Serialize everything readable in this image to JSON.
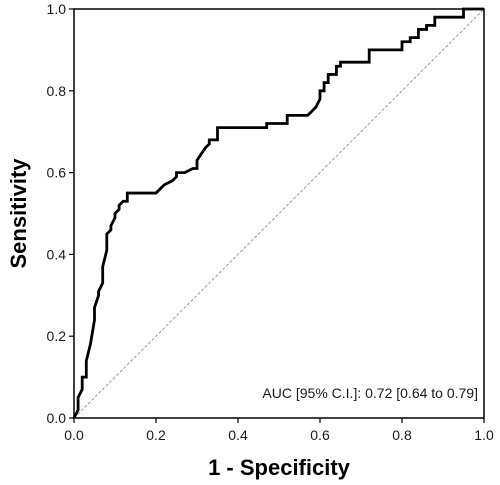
{
  "chart_data": {
    "type": "line",
    "xlabel": "1 - Specificity",
    "ylabel": "Sensitivity",
    "xlim": [
      0,
      1
    ],
    "ylim": [
      0,
      1
    ],
    "x_ticks": [
      "0.0",
      "0.2",
      "0.4",
      "0.6",
      "0.8",
      "1.0"
    ],
    "y_ticks": [
      "0.0",
      "0.2",
      "0.4",
      "0.6",
      "0.8",
      "1.0"
    ],
    "grid": false,
    "annotation": "AUC [95% C.I.]: 0.72 [0.64 to 0.79]",
    "reference_line": {
      "x": [
        0,
        1
      ],
      "y": [
        0,
        1
      ],
      "style": "dashed",
      "color": "#999999"
    },
    "series": [
      {
        "color": "#000000",
        "x": [
          0,
          0.01,
          0.01,
          0.02,
          0.02,
          0.03,
          0.03,
          0.04,
          0.04,
          0.05,
          0.05,
          0.06,
          0.06,
          0.07,
          0.07,
          0.08,
          0.08,
          0.09,
          0.09,
          0.1,
          0.1,
          0.11,
          0.11,
          0.12,
          0.12,
          0.13,
          0.13,
          0.15,
          0.15,
          0.2,
          0.2,
          0.22,
          0.24,
          0.25,
          0.25,
          0.27,
          0.29,
          0.3,
          0.3,
          0.32,
          0.33,
          0.33,
          0.35,
          0.35,
          0.42,
          0.47,
          0.47,
          0.52,
          0.52,
          0.57,
          0.59,
          0.6,
          0.6,
          0.61,
          0.61,
          0.62,
          0.62,
          0.64,
          0.64,
          0.65,
          0.65,
          0.72,
          0.72,
          0.8,
          0.8,
          0.82,
          0.82,
          0.84,
          0.84,
          0.86,
          0.86,
          0.88,
          0.88,
          0.95,
          0.95,
          1.0
        ],
        "y": [
          0,
          0.02,
          0.05,
          0.07,
          0.1,
          0.1,
          0.14,
          0.18,
          0.18,
          0.24,
          0.27,
          0.3,
          0.31,
          0.33,
          0.37,
          0.41,
          0.45,
          0.46,
          0.47,
          0.49,
          0.5,
          0.51,
          0.52,
          0.53,
          0.53,
          0.53,
          0.55,
          0.55,
          0.55,
          0.55,
          0.55,
          0.57,
          0.58,
          0.59,
          0.6,
          0.6,
          0.61,
          0.61,
          0.63,
          0.66,
          0.67,
          0.68,
          0.68,
          0.71,
          0.71,
          0.71,
          0.72,
          0.72,
          0.74,
          0.74,
          0.76,
          0.78,
          0.8,
          0.8,
          0.82,
          0.82,
          0.84,
          0.84,
          0.86,
          0.86,
          0.87,
          0.87,
          0.9,
          0.9,
          0.92,
          0.92,
          0.93,
          0.93,
          0.95,
          0.95,
          0.96,
          0.96,
          0.98,
          0.98,
          1.0,
          1.0
        ]
      }
    ]
  }
}
